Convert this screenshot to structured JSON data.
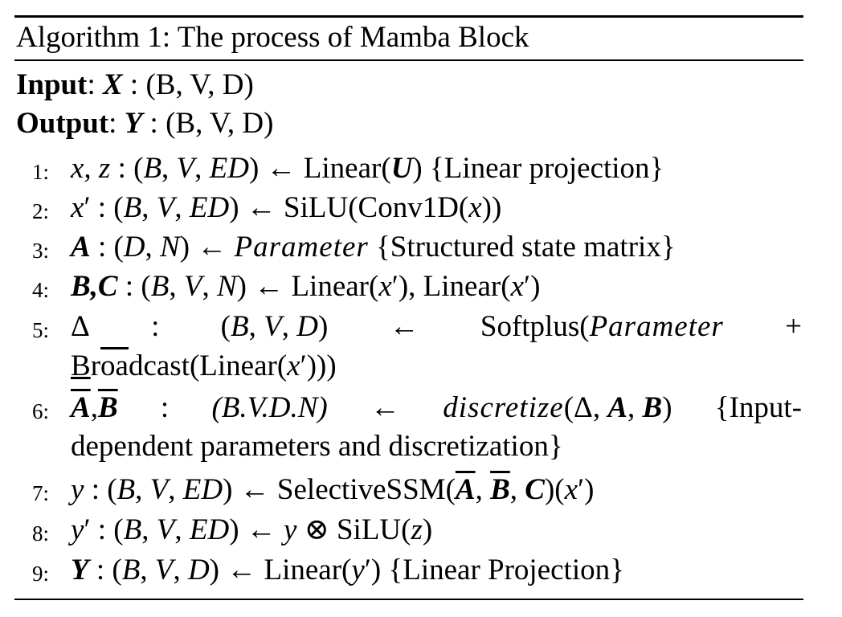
{
  "algorithm": {
    "title": "Algorithm 1: The process of Mamba Block",
    "input_label": "Input",
    "input_sep": ": ",
    "input_var": "X",
    "input_shape": " : (B, V, D)",
    "output_label": "Output",
    "output_sep": ": ",
    "output_var": "Y",
    "output_shape": " : (B, V, D)"
  },
  "steps": [
    {
      "num": "1:"
    },
    {
      "num": "2:"
    },
    {
      "num": "3:"
    },
    {
      "num": "4:"
    },
    {
      "num": "5:"
    },
    {
      "num": "6:"
    },
    {
      "num": "7:"
    },
    {
      "num": "8:"
    },
    {
      "num": "9:"
    }
  ],
  "text": {
    "s1_a": "x, z",
    "s1_b": " : (",
    "s1_c": "B",
    "s1_d": ", ",
    "s1_e": "V",
    "s1_f": ", ",
    "s1_g": "ED",
    "s1_h": ") ← Linear(",
    "s1_i": "U",
    "s1_j": ") {Linear projection}",
    "s2_a": "x",
    "s2_b": "′",
    "s2_c": " : (",
    "s2_d": "B",
    "s2_e": ", ",
    "s2_f": "V",
    "s2_g": ", ",
    "s2_h": "ED",
    "s2_i": ") ← SiLU(Conv1D(",
    "s2_j": "x",
    "s2_k": "))",
    "s3_a": "A",
    "s3_b": " : (",
    "s3_c": "D",
    "s3_d": ", ",
    "s3_e": "N",
    "s3_f": ") ← ",
    "s3_g": "Parameter",
    "s3_h": " {Structured state matrix}",
    "s4_a": "B,C",
    "s4_b": " : (",
    "s4_c": "B",
    "s4_d": ", ",
    "s4_e": "V",
    "s4_f": ", ",
    "s4_g": "N",
    "s4_h": ") ← Linear(",
    "s4_i": "x",
    "s4_j": "′",
    "s4_k": "), Linear(",
    "s4_l": "x",
    "s4_m": "′",
    "s4_n": ")",
    "s5_a": "Δ",
    "s5_b": ":",
    "s5_c1": "(",
    "s5_c2": "B",
    "s5_c3": ", ",
    "s5_c4": "V",
    "s5_c5": ", ",
    "s5_c6": "D",
    "s5_c7": ")",
    "s5_d": "←",
    "s5_e1": "Softplus(",
    "s5_e2": "Parameter",
    "s5_f": "+",
    "s5_g1": "B",
    "s5_g2": "r",
    "s5_g3": "oa",
    "s5_g4": "dcast(Linear(",
    "s5_g5": "x",
    "s5_g6": "′",
    "s5_g7": ")))",
    "s6_a1": "A",
    "s6_a2": ",",
    "s6_a3": "B",
    "s6_b": ":",
    "s6_c": "(B.V.D.N)",
    "s6_d": "←",
    "s6_e1": "discretize",
    "s6_e2": "(Δ, ",
    "s6_e3": "A",
    "s6_e4": ", ",
    "s6_e5": "B",
    "s6_e6": ")",
    "s6_f": "{Input-",
    "s6_g": "dependent parameters and discretization}",
    "s7_a": "y",
    "s7_b": " : (",
    "s7_c": "B",
    "s7_d": ", ",
    "s7_e": "V",
    "s7_f": ", ",
    "s7_g": "ED",
    "s7_h": ") ← SelectiveSSM(",
    "s7_i": "A",
    "s7_j": ", ",
    "s7_k": "B",
    "s7_l": ", ",
    "s7_m": "C",
    "s7_n": ")(",
    "s7_o": "x",
    "s7_p": "′",
    "s7_q": ")",
    "s8_a": "y",
    "s8_b": "′",
    "s8_c": " : (",
    "s8_d": "B",
    "s8_e": ", ",
    "s8_f": "V",
    "s8_g": ", ",
    "s8_h": "ED",
    "s8_i": ") ← ",
    "s8_j": "y",
    "s8_k": " ⊗ SiLU(",
    "s8_l": "z",
    "s8_m": ")",
    "s9_a": "Y",
    "s9_b": " : (",
    "s9_c": "B",
    "s9_d": ", ",
    "s9_e": "V",
    "s9_f": ", ",
    "s9_g": "D",
    "s9_h": ") ← Linear(",
    "s9_i": "y",
    "s9_j": "′",
    "s9_k": ") {Linear Projection}"
  }
}
